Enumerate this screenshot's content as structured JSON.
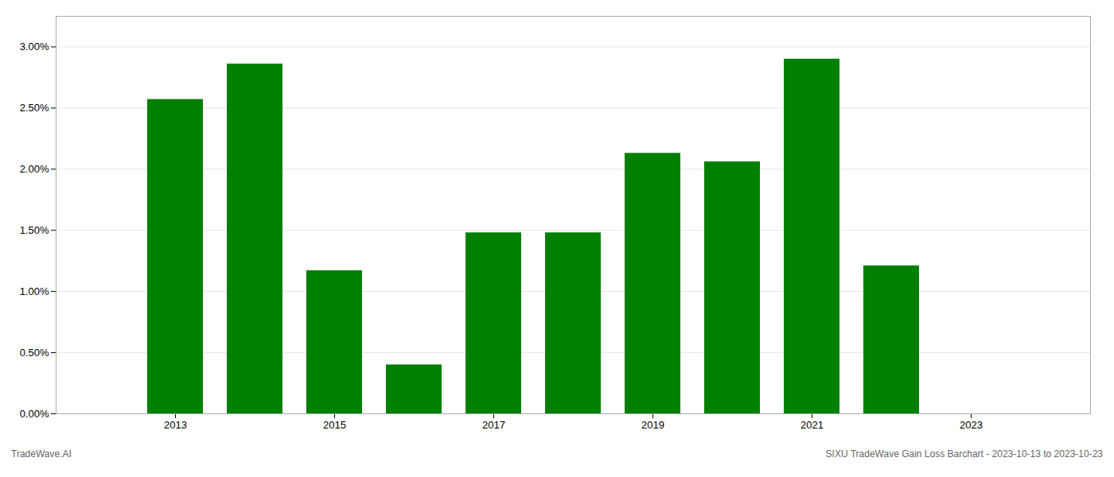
{
  "chart_data": {
    "type": "bar",
    "x": [
      2013,
      2014,
      2015,
      2016,
      2017,
      2018,
      2019,
      2020,
      2021,
      2022
    ],
    "values": [
      0.0257,
      0.0286,
      0.0117,
      0.004,
      0.0148,
      0.0148,
      0.0213,
      0.0206,
      0.029,
      0.0121
    ],
    "color": "#008000",
    "xlim": [
      2011.5,
      2024.5
    ],
    "xticks": [
      2013,
      2015,
      2017,
      2019,
      2021,
      2023
    ],
    "ylim": [
      0,
      0.0325
    ],
    "yticks": [
      {
        "value": 0.0,
        "label": "0.00%"
      },
      {
        "value": 0.005,
        "label": "0.50%"
      },
      {
        "value": 0.01,
        "label": "1.00%"
      },
      {
        "value": 0.015,
        "label": "1.50%"
      },
      {
        "value": 0.02,
        "label": "2.00%"
      },
      {
        "value": 0.025,
        "label": "2.50%"
      },
      {
        "value": 0.03,
        "label": "3.00%"
      }
    ],
    "grid": true,
    "annotations": [
      "TradeWave.AI",
      "SIXU TradeWave Gain Loss Barchart - 2023-10-13 to 2023-10-23"
    ]
  }
}
